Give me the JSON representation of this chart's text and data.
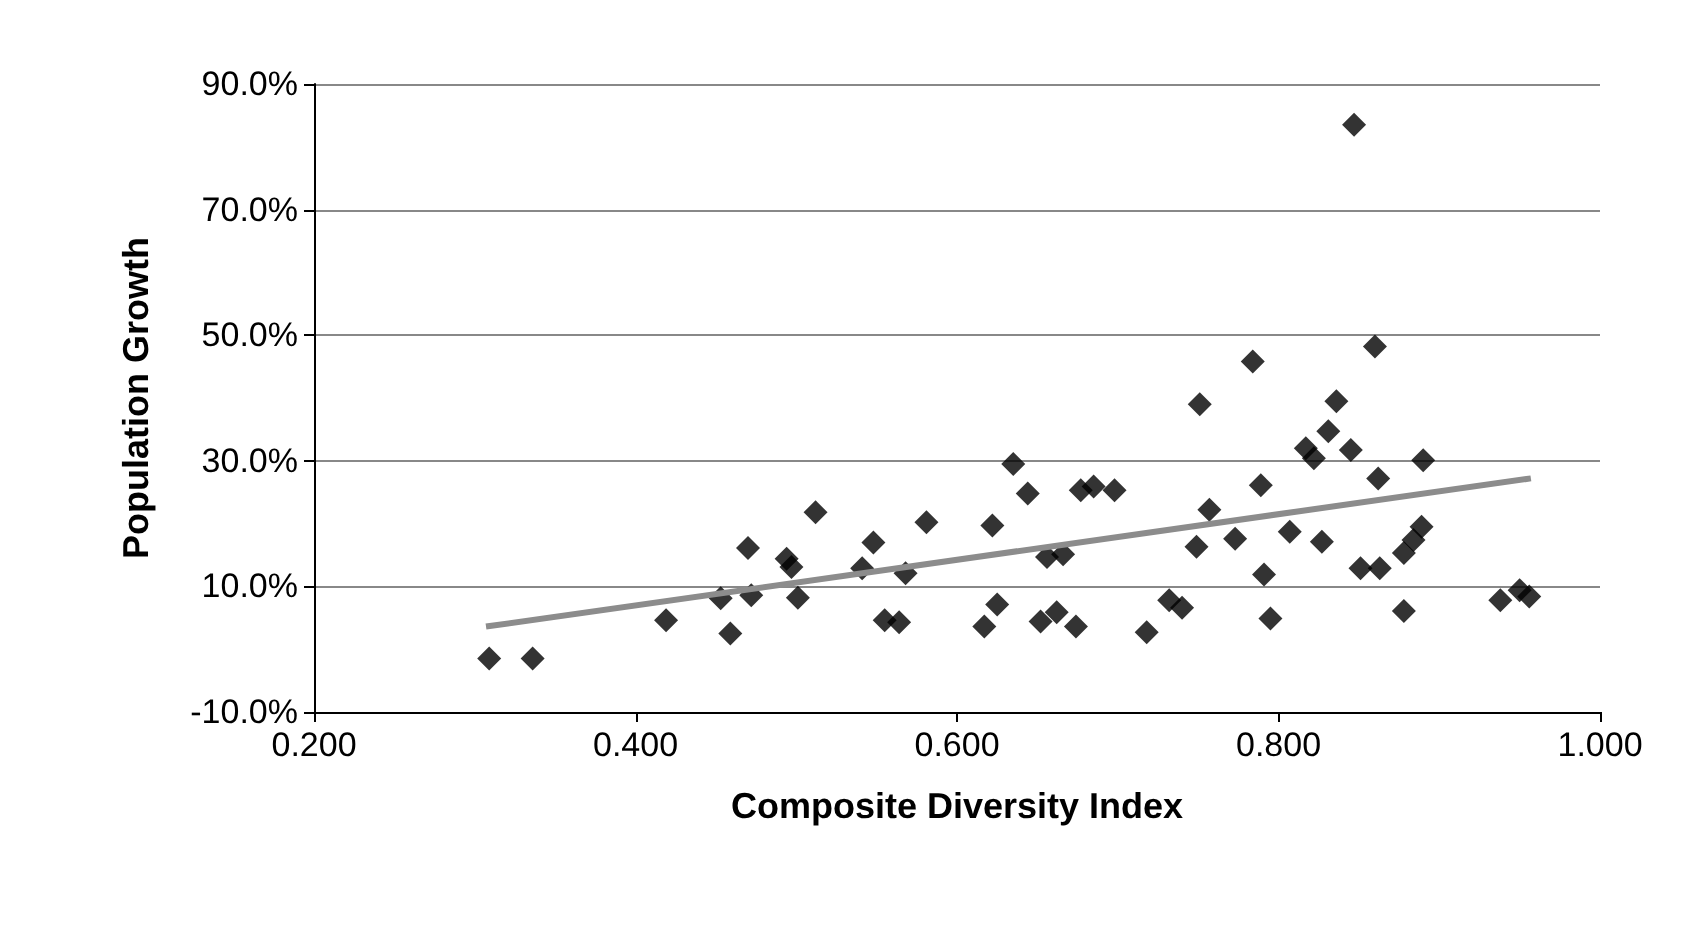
{
  "chart_data": {
    "type": "scatter",
    "xlabel": "Composite Diversity Index",
    "ylabel": "Population Growth",
    "xlim": [
      0.2,
      1.0
    ],
    "xticks": [
      {
        "value": 0.2,
        "label": "0.200"
      },
      {
        "value": 0.4,
        "label": "0.400"
      },
      {
        "value": 0.6,
        "label": "0.600"
      },
      {
        "value": 0.8,
        "label": "0.800"
      },
      {
        "value": 1.0,
        "label": "1.000"
      }
    ],
    "ylim": [
      -10,
      90
    ],
    "yticks": [
      {
        "value": -10,
        "label": "-10.0%"
      },
      {
        "value": 10,
        "label": "10.0%"
      },
      {
        "value": 30,
        "label": "30.0%"
      },
      {
        "value": 50,
        "label": "50.0%"
      },
      {
        "value": 70,
        "label": "70.0%"
      },
      {
        "value": 90,
        "label": "90.0%"
      }
    ],
    "grid": "y",
    "marker": "diamond",
    "series": [
      {
        "color": "#000000",
        "x": [
          0.309,
          0.336,
          0.419,
          0.459,
          0.453,
          0.47,
          0.472,
          0.494,
          0.497,
          0.501,
          0.512,
          0.548,
          0.541,
          0.555,
          0.564,
          0.568,
          0.581,
          0.617,
          0.625,
          0.622,
          0.635,
          0.644,
          0.656,
          0.666,
          0.652,
          0.662,
          0.674,
          0.677,
          0.685,
          0.698,
          0.718,
          0.732,
          0.74,
          0.749,
          0.751,
          0.757,
          0.773,
          0.784,
          0.789,
          0.791,
          0.795,
          0.807,
          0.817,
          0.822,
          0.827,
          0.831,
          0.836,
          0.845,
          0.847,
          0.851,
          0.86,
          0.862,
          0.863,
          0.878,
          0.878,
          0.884,
          0.889,
          0.89,
          0.938,
          0.95,
          0.956
        ],
        "values": [
          -1.5,
          -1.5,
          4.6,
          2.5,
          8.1,
          16.1,
          8.6,
          14.4,
          13.1,
          8.2,
          21.8,
          17.0,
          12.9,
          4.6,
          4.3,
          12.1,
          20.2,
          3.6,
          7.1,
          19.7,
          29.5,
          24.8,
          14.7,
          15.1,
          4.4,
          5.9,
          3.6,
          25.3,
          25.9,
          25.3,
          2.7,
          7.8,
          6.6,
          16.3,
          39.0,
          22.2,
          17.6,
          45.8,
          26.1,
          11.9,
          4.9,
          18.7,
          32.0,
          30.4,
          17.1,
          34.7,
          39.5,
          31.7,
          83.5,
          12.9,
          48.2,
          27.2,
          12.9,
          6.1,
          15.3,
          17.4,
          19.5,
          30.1,
          7.8,
          9.4,
          8.4
        ]
      },
      {
        "type": "line",
        "marker": "none",
        "color": "#8c8c8c",
        "x": [
          0.307,
          0.957
        ],
        "values": [
          3.6,
          27.2
        ]
      }
    ]
  }
}
